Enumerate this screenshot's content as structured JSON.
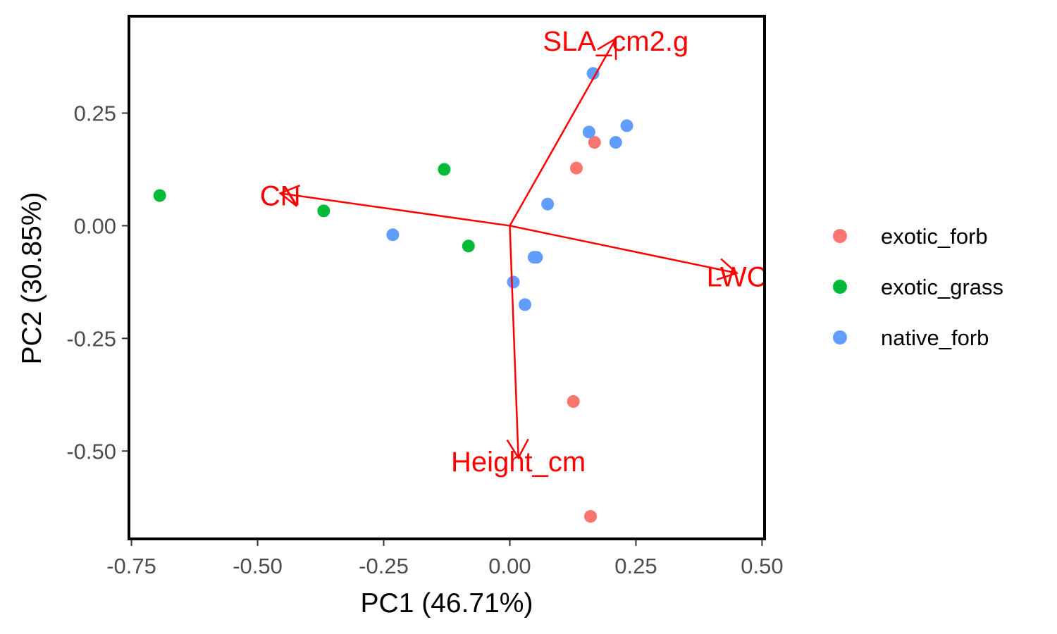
{
  "chart_data": {
    "type": "scatter",
    "xlabel": "PC1 (46.71%)",
    "ylabel": "PC2 (30.85%)",
    "xlim": [
      -0.755,
      0.505
    ],
    "ylim": [
      -0.695,
      0.465
    ],
    "x_ticks": [
      {
        "value": -0.75,
        "label": "-0.75"
      },
      {
        "value": -0.5,
        "label": "-0.50"
      },
      {
        "value": -0.25,
        "label": "-0.25"
      },
      {
        "value": 0,
        "label": "0.00"
      },
      {
        "value": 0.25,
        "label": "0.25"
      },
      {
        "value": 0.5,
        "label": "0.50"
      }
    ],
    "y_ticks": [
      {
        "value": 0.25,
        "label": "0.25"
      },
      {
        "value": 0,
        "label": "0.00"
      },
      {
        "value": -0.25,
        "label": "-0.25"
      },
      {
        "value": -0.5,
        "label": "-0.50"
      }
    ],
    "grid": false,
    "legend_position": "right",
    "series": [
      {
        "name": "exotic_forb",
        "color": "#F8766D",
        "points": [
          {
            "x": 0.168,
            "y": 0.185
          },
          {
            "x": 0.132,
            "y": 0.128
          },
          {
            "x": 0.126,
            "y": -0.39
          },
          {
            "x": 0.16,
            "y": -0.645
          }
        ]
      },
      {
        "name": "exotic_grass",
        "color": "#00BA38",
        "points": [
          {
            "x": -0.694,
            "y": 0.067
          },
          {
            "x": -0.369,
            "y": 0.033
          },
          {
            "x": -0.13,
            "y": 0.125
          },
          {
            "x": -0.082,
            "y": -0.045
          }
        ]
      },
      {
        "name": "native_forb",
        "color": "#619CFF",
        "points": [
          {
            "x": 0.165,
            "y": 0.338
          },
          {
            "x": 0.157,
            "y": 0.208
          },
          {
            "x": 0.232,
            "y": 0.222
          },
          {
            "x": 0.21,
            "y": 0.185
          },
          {
            "x": 0.075,
            "y": 0.048
          },
          {
            "x": -0.232,
            "y": -0.02
          },
          {
            "x": 0.048,
            "y": -0.07
          },
          {
            "x": 0.053,
            "y": -0.07
          },
          {
            "x": 0.007,
            "y": -0.125
          },
          {
            "x": 0.03,
            "y": -0.175
          }
        ]
      }
    ],
    "loadings": {
      "color": "#FF0000",
      "origin": {
        "x": 0,
        "y": 0
      },
      "vectors": [
        {
          "name": "SLA_cm2.g",
          "x": 0.21,
          "y": 0.415,
          "label_x": 0.21,
          "label_y": 0.41
        },
        {
          "name": "CN",
          "x": -0.455,
          "y": 0.072,
          "label_x": -0.455,
          "label_y": 0.067
        },
        {
          "name": "LWC",
          "x": 0.45,
          "y": -0.105,
          "label_x": 0.45,
          "label_y": -0.113
        },
        {
          "name": "Height_cm",
          "x": 0.017,
          "y": -0.515,
          "label_x": 0.017,
          "label_y": -0.523
        }
      ]
    }
  }
}
